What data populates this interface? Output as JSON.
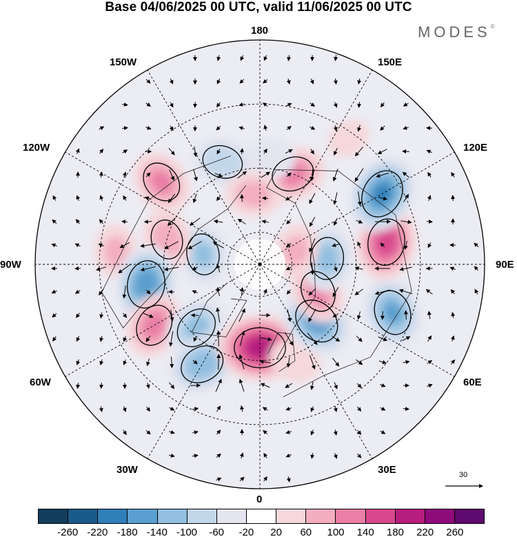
{
  "title": "Base 04/06/2025 00 UTC, valid 11/06/2025 00 UTC",
  "brand": "MODES",
  "brand_mark": "©",
  "longitude_labels": {
    "top": "180",
    "bottom": "0",
    "left": "90W",
    "right": "90E",
    "upper_left_1": "150W",
    "upper_left_2": "120W",
    "upper_right_1": "150E",
    "upper_right_2": "120E",
    "lower_left_1": "60W",
    "lower_left_2": "30W",
    "lower_right_1": "60E",
    "lower_right_2": "30E"
  },
  "reference_vector": {
    "label": "30"
  },
  "colorbar": {
    "ticks": [
      "-260",
      "-220",
      "-180",
      "-140",
      "-100",
      "-60",
      "-20",
      "20",
      "60",
      "100",
      "140",
      "180",
      "220",
      "260"
    ],
    "colors": [
      "#123e5c",
      "#1a5a8a",
      "#2f7fb8",
      "#5a9fcf",
      "#92bfe0",
      "#c3d7ea",
      "#e4e5f0",
      "#ffffff",
      "#f6d8dc",
      "#f3aebf",
      "#ea7ea6",
      "#d9488d",
      "#b61d7f",
      "#8e0c7a",
      "#5e0a6e"
    ]
  },
  "anomaly_centers": [
    {
      "lon": -160,
      "colat": 34,
      "value": -110
    },
    {
      "lon": -130,
      "colat": 40,
      "value": 120
    },
    {
      "lon": -100,
      "colat": 18,
      "value": -120
    },
    {
      "lon": -95,
      "colat": 45,
      "value": 80
    },
    {
      "lon": -105,
      "colat": 30,
      "value": 100
    },
    {
      "lon": -80,
      "colat": 36,
      "value": -190
    },
    {
      "lon": -60,
      "colat": 38,
      "value": 130
    },
    {
      "lon": -45,
      "colat": 28,
      "value": -130
    },
    {
      "lon": -30,
      "colat": 36,
      "value": -150
    },
    {
      "lon": 0,
      "colat": 26,
      "value": 230
    },
    {
      "lon": 20,
      "colat": 32,
      "value": 70
    },
    {
      "lon": 45,
      "colat": 25,
      "value": -180
    },
    {
      "lon": 70,
      "colat": 44,
      "value": -160
    },
    {
      "lon": 65,
      "colat": 20,
      "value": 120
    },
    {
      "lon": 95,
      "colat": 21,
      "value": -130
    },
    {
      "lon": 100,
      "colat": 40,
      "value": 180
    },
    {
      "lon": 120,
      "colat": 44,
      "value": -200
    },
    {
      "lon": 160,
      "colat": 30,
      "value": 130
    },
    {
      "lon": 175,
      "colat": 33,
      "value": -70
    },
    {
      "lon": -175,
      "colat": 22,
      "value": 90
    },
    {
      "lon": 110,
      "colat": 12,
      "value": 80
    },
    {
      "lon": 145,
      "colat": 48,
      "value": 40
    }
  ]
}
